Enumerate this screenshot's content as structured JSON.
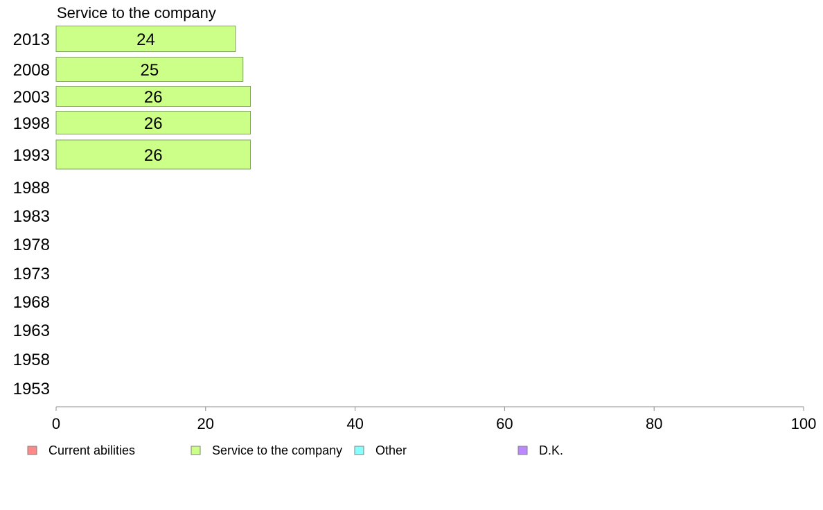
{
  "chart_data": {
    "type": "bar",
    "orientation": "horizontal",
    "series_title": "Service to the company",
    "categories": [
      "2013",
      "2008",
      "2003",
      "1998",
      "1993",
      "1988",
      "1983",
      "1978",
      "1973",
      "1968",
      "1963",
      "1958",
      "1953"
    ],
    "series": [
      {
        "name": "Service to the company",
        "color": "#ccff88",
        "values": [
          24,
          25,
          26,
          26,
          26,
          null,
          null,
          null,
          null,
          null,
          null,
          null,
          null
        ]
      }
    ],
    "xlim": [
      0,
      100
    ],
    "xticks": [
      0,
      20,
      40,
      60,
      80,
      100
    ],
    "grid": false,
    "legend_placement": "bottom",
    "legend": [
      {
        "label": "Current abilities",
        "color": "#ff8888"
      },
      {
        "label": "Service to the company",
        "color": "#ccff88"
      },
      {
        "label": "Other",
        "color": "#88ffff"
      },
      {
        "label": "D.K.",
        "color": "#bb88ff"
      }
    ]
  }
}
